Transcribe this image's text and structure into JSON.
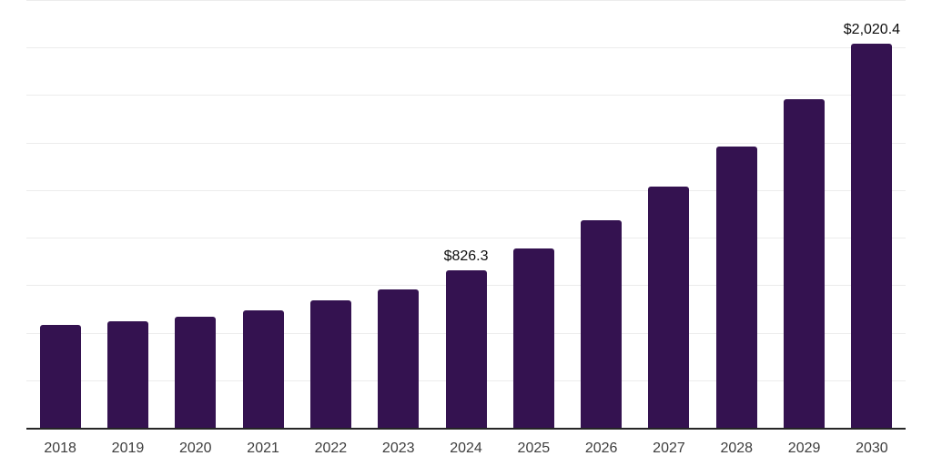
{
  "chart_data": {
    "type": "bar",
    "title": "",
    "xlabel": "",
    "ylabel": "",
    "categories": [
      "2018",
      "2019",
      "2020",
      "2021",
      "2022",
      "2023",
      "2024",
      "2025",
      "2026",
      "2027",
      "2028",
      "2029",
      "2030"
    ],
    "values": [
      542,
      559,
      583,
      619,
      670,
      726,
      826.3,
      945,
      1093,
      1268,
      1479,
      1728,
      2020.4
    ],
    "data_labels": [
      {
        "category": "2024",
        "text": "$826.3"
      },
      {
        "category": "2030",
        "text": "$2,020.4"
      }
    ],
    "ylim": [
      0,
      2250
    ],
    "grid_step": 250,
    "grid": "horizontal gridlines on, no y tick labels",
    "legend": "none",
    "bar_color": "#341250",
    "grid_color": "#ececec",
    "axis_color": "#262626",
    "tick_label_color": "#3d3d3d",
    "data_label_color": "#0d0d0d"
  }
}
